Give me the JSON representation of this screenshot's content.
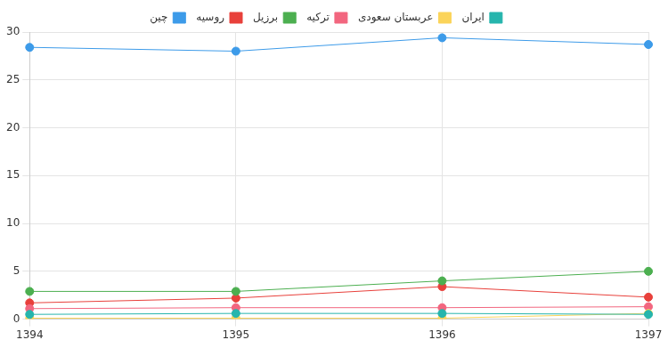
{
  "chart_data": {
    "type": "line",
    "categories": [
      "1394",
      "1395",
      "1396",
      "1397"
    ],
    "series": [
      {
        "name": "ایران",
        "color": "#26b5ad",
        "values": [
          0.5,
          0.6,
          0.6,
          0.5
        ]
      },
      {
        "name": "عربستان سعودی",
        "color": "#fbd45a",
        "values": [
          0.1,
          0.1,
          0.1,
          0.6
        ]
      },
      {
        "name": "ترکیه",
        "color": "#f2667f",
        "values": [
          1.1,
          1.2,
          1.2,
          1.3
        ]
      },
      {
        "name": "برزیل",
        "color": "#4caf50",
        "values": [
          2.9,
          2.9,
          4.0,
          5.0
        ]
      },
      {
        "name": "روسیه",
        "color": "#e8403b",
        "values": [
          1.7,
          2.2,
          3.4,
          2.3
        ]
      },
      {
        "name": "چین",
        "color": "#3d9be9",
        "values": [
          28.4,
          28.0,
          29.4,
          28.7
        ]
      }
    ],
    "ylim": [
      0,
      30
    ],
    "yticks": [
      0,
      5,
      10,
      15,
      20,
      25,
      30
    ],
    "grid": true,
    "legend": "top",
    "marker": "circle"
  }
}
